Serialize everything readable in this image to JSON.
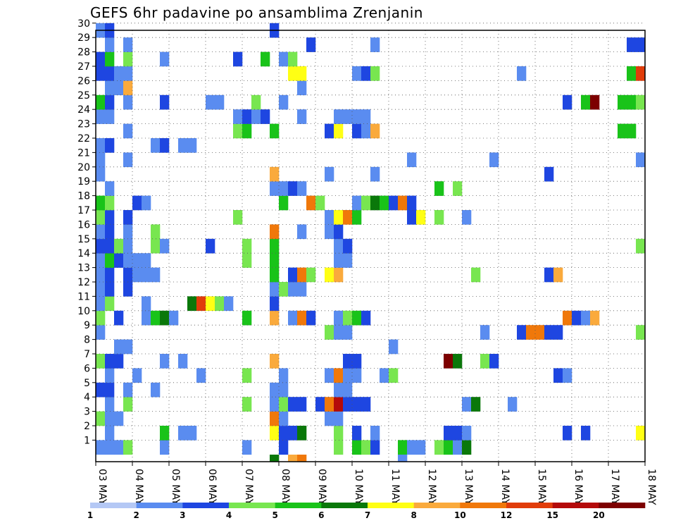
{
  "chart_data": {
    "type": "heatmap",
    "title": "GEFS 6hr padavine po ansamblima Zrenjanin",
    "xlabel": "",
    "ylabel": "",
    "y_members": [
      1,
      2,
      3,
      4,
      5,
      6,
      7,
      8,
      9,
      10,
      11,
      12,
      13,
      14,
      15,
      16,
      17,
      18,
      19,
      20,
      21,
      22,
      23,
      24,
      25,
      26,
      27,
      28,
      29,
      30
    ],
    "x_ticks": [
      {
        "label": "03 MAY",
        "step": 0
      },
      {
        "label": "04 MAY",
        "step": 4
      },
      {
        "label": "05 MAY",
        "step": 8
      },
      {
        "label": "06 MAY",
        "step": 12
      },
      {
        "label": "07 MAY",
        "step": 16
      },
      {
        "label": "08 MAY",
        "step": 20
      },
      {
        "label": "09 MAY",
        "step": 24
      },
      {
        "label": "10 MAY",
        "step": 28
      },
      {
        "label": "11 MAY",
        "step": 32
      },
      {
        "label": "12 MAY",
        "step": 36
      },
      {
        "label": "13 MAY",
        "step": 40
      },
      {
        "label": "14 MAY",
        "step": 44
      },
      {
        "label": "15 MAY",
        "step": 48
      },
      {
        "label": "16 MAY",
        "step": 52
      },
      {
        "label": "17 MAY",
        "step": 56
      },
      {
        "label": "18 MAY",
        "step": 60
      }
    ],
    "x_range": [
      "03 MAY",
      "18 MAY"
    ],
    "interval": "6hr",
    "grid": true,
    "legend": {
      "placement": "bottom",
      "labels": [
        "1",
        "2",
        "3",
        "4",
        "5",
        "6",
        "7",
        "8",
        "10",
        "12",
        "15",
        "20"
      ],
      "colors": [
        "#b4c8f5",
        "#5a8cf0",
        "#1e46e1",
        "#78e650",
        "#19c319",
        "#0a780a",
        "#ffff14",
        "#faaa3c",
        "#f0780a",
        "#e13c0a",
        "#b40a0a",
        "#7d0000"
      ]
    },
    "cells": [
      [
        1,
        0,
        1
      ],
      [
        1,
        1,
        1
      ],
      [
        1,
        2,
        1
      ],
      [
        1,
        3,
        3
      ],
      [
        1,
        7,
        1
      ],
      [
        1,
        16,
        1
      ],
      [
        1,
        20,
        2
      ],
      [
        1,
        26,
        3
      ],
      [
        1,
        28,
        4
      ],
      [
        1,
        29,
        3
      ],
      [
        1,
        30,
        2
      ],
      [
        1,
        33,
        4
      ],
      [
        1,
        34,
        1
      ],
      [
        1,
        35,
        1
      ],
      [
        1,
        37,
        3
      ],
      [
        1,
        38,
        4
      ],
      [
        1,
        39,
        1
      ],
      [
        1,
        40,
        5
      ],
      [
        2,
        1,
        1
      ],
      [
        2,
        7,
        4
      ],
      [
        2,
        9,
        1
      ],
      [
        2,
        10,
        1
      ],
      [
        2,
        19,
        6
      ],
      [
        2,
        20,
        2
      ],
      [
        2,
        21,
        2
      ],
      [
        2,
        22,
        5
      ],
      [
        2,
        26,
        3
      ],
      [
        2,
        28,
        2
      ],
      [
        2,
        30,
        1
      ],
      [
        2,
        38,
        2
      ],
      [
        2,
        39,
        2
      ],
      [
        2,
        40,
        1
      ],
      [
        2,
        51,
        2
      ],
      [
        2,
        53,
        2
      ],
      [
        2,
        59,
        6
      ],
      [
        3,
        0,
        3
      ],
      [
        3,
        1,
        1
      ],
      [
        3,
        2,
        1
      ],
      [
        3,
        19,
        8
      ],
      [
        3,
        20,
        1
      ],
      [
        3,
        25,
        1
      ],
      [
        3,
        26,
        1
      ],
      [
        4,
        1,
        1
      ],
      [
        4,
        3,
        3
      ],
      [
        4,
        16,
        3
      ],
      [
        4,
        19,
        1
      ],
      [
        4,
        20,
        3
      ],
      [
        4,
        21,
        2
      ],
      [
        4,
        22,
        2
      ],
      [
        4,
        24,
        2
      ],
      [
        4,
        25,
        8
      ],
      [
        4,
        26,
        10
      ],
      [
        4,
        27,
        2
      ],
      [
        4,
        28,
        2
      ],
      [
        4,
        29,
        2
      ],
      [
        4,
        40,
        1
      ],
      [
        4,
        41,
        5
      ],
      [
        4,
        45,
        1
      ],
      [
        5,
        0,
        2
      ],
      [
        5,
        1,
        2
      ],
      [
        5,
        3,
        1
      ],
      [
        5,
        6,
        1
      ],
      [
        5,
        19,
        1
      ],
      [
        5,
        20,
        1
      ],
      [
        5,
        26,
        1
      ],
      [
        5,
        27,
        1
      ],
      [
        6,
        1,
        1
      ],
      [
        6,
        4,
        1
      ],
      [
        6,
        11,
        1
      ],
      [
        6,
        16,
        3
      ],
      [
        6,
        20,
        1
      ],
      [
        6,
        25,
        1
      ],
      [
        6,
        26,
        8
      ],
      [
        6,
        27,
        1
      ],
      [
        6,
        28,
        1
      ],
      [
        6,
        31,
        1
      ],
      [
        6,
        32,
        3
      ],
      [
        6,
        50,
        2
      ],
      [
        6,
        51,
        1
      ],
      [
        7,
        0,
        3
      ],
      [
        7,
        1,
        2
      ],
      [
        7,
        2,
        2
      ],
      [
        7,
        7,
        1
      ],
      [
        7,
        9,
        1
      ],
      [
        7,
        19,
        7
      ],
      [
        7,
        27,
        2
      ],
      [
        7,
        28,
        2
      ],
      [
        7,
        38,
        11
      ],
      [
        7,
        39,
        5
      ],
      [
        7,
        42,
        3
      ],
      [
        7,
        43,
        2
      ],
      [
        8,
        2,
        1
      ],
      [
        8,
        3,
        1
      ],
      [
        8,
        32,
        1
      ],
      [
        9,
        0,
        1
      ],
      [
        9,
        25,
        3
      ],
      [
        9,
        26,
        1
      ],
      [
        9,
        27,
        1
      ],
      [
        9,
        42,
        1
      ],
      [
        9,
        46,
        2
      ],
      [
        9,
        47,
        8
      ],
      [
        9,
        48,
        8
      ],
      [
        9,
        49,
        2
      ],
      [
        9,
        50,
        2
      ],
      [
        9,
        59,
        3
      ],
      [
        10,
        0,
        3
      ],
      [
        10,
        2,
        2
      ],
      [
        10,
        5,
        1
      ],
      [
        10,
        6,
        4
      ],
      [
        10,
        7,
        5
      ],
      [
        10,
        8,
        1
      ],
      [
        10,
        16,
        4
      ],
      [
        10,
        19,
        7
      ],
      [
        10,
        21,
        1
      ],
      [
        10,
        22,
        8
      ],
      [
        10,
        23,
        2
      ],
      [
        10,
        26,
        1
      ],
      [
        10,
        27,
        3
      ],
      [
        10,
        28,
        4
      ],
      [
        10,
        29,
        2
      ],
      [
        10,
        51,
        8
      ],
      [
        10,
        52,
        2
      ],
      [
        10,
        53,
        1
      ],
      [
        10,
        54,
        7
      ],
      [
        11,
        0,
        1
      ],
      [
        11,
        1,
        3
      ],
      [
        11,
        5,
        1
      ],
      [
        11,
        10,
        5
      ],
      [
        11,
        11,
        9
      ],
      [
        11,
        12,
        6
      ],
      [
        11,
        13,
        3
      ],
      [
        11,
        14,
        1
      ],
      [
        11,
        19,
        2
      ],
      [
        12,
        0,
        1
      ],
      [
        12,
        1,
        2
      ],
      [
        12,
        3,
        2
      ],
      [
        12,
        19,
        1
      ],
      [
        12,
        20,
        3
      ],
      [
        12,
        21,
        1
      ],
      [
        12,
        22,
        1
      ],
      [
        13,
        0,
        1
      ],
      [
        13,
        1,
        2
      ],
      [
        13,
        3,
        2
      ],
      [
        13,
        4,
        1
      ],
      [
        13,
        5,
        1
      ],
      [
        13,
        6,
        1
      ],
      [
        13,
        19,
        4
      ],
      [
        13,
        21,
        2
      ],
      [
        13,
        22,
        8
      ],
      [
        13,
        23,
        3
      ],
      [
        13,
        25,
        6
      ],
      [
        13,
        26,
        7
      ],
      [
        13,
        41,
        3
      ],
      [
        13,
        49,
        2
      ],
      [
        13,
        50,
        7
      ],
      [
        14,
        0,
        1
      ],
      [
        14,
        1,
        4
      ],
      [
        14,
        2,
        2
      ],
      [
        14,
        3,
        1
      ],
      [
        14,
        4,
        1
      ],
      [
        14,
        5,
        1
      ],
      [
        14,
        16,
        3
      ],
      [
        14,
        19,
        4
      ],
      [
        14,
        26,
        1
      ],
      [
        14,
        27,
        1
      ],
      [
        15,
        0,
        2
      ],
      [
        15,
        1,
        2
      ],
      [
        15,
        2,
        3
      ],
      [
        15,
        3,
        1
      ],
      [
        15,
        6,
        3
      ],
      [
        15,
        7,
        1
      ],
      [
        15,
        12,
        2
      ],
      [
        15,
        16,
        3
      ],
      [
        15,
        19,
        4
      ],
      [
        15,
        26,
        1
      ],
      [
        15,
        27,
        2
      ],
      [
        15,
        59,
        3
      ],
      [
        16,
        0,
        1
      ],
      [
        16,
        1,
        2
      ],
      [
        16,
        3,
        1
      ],
      [
        16,
        6,
        3
      ],
      [
        16,
        19,
        8
      ],
      [
        16,
        22,
        1
      ],
      [
        16,
        25,
        1
      ],
      [
        16,
        26,
        2
      ],
      [
        17,
        0,
        3
      ],
      [
        17,
        1,
        2
      ],
      [
        17,
        3,
        2
      ],
      [
        17,
        15,
        3
      ],
      [
        17,
        25,
        1
      ],
      [
        17,
        26,
        6
      ],
      [
        17,
        27,
        8
      ],
      [
        17,
        28,
        4
      ],
      [
        17,
        34,
        2
      ],
      [
        17,
        35,
        6
      ],
      [
        17,
        37,
        3
      ],
      [
        17,
        40,
        1
      ],
      [
        18,
        0,
        4
      ],
      [
        18,
        1,
        3
      ],
      [
        18,
        4,
        2
      ],
      [
        18,
        5,
        1
      ],
      [
        18,
        20,
        4
      ],
      [
        18,
        23,
        8
      ],
      [
        18,
        24,
        3
      ],
      [
        18,
        28,
        1
      ],
      [
        18,
        29,
        3
      ],
      [
        18,
        30,
        5
      ],
      [
        18,
        31,
        4
      ],
      [
        18,
        32,
        2
      ],
      [
        18,
        33,
        8
      ],
      [
        18,
        34,
        2
      ],
      [
        19,
        1,
        1
      ],
      [
        19,
        19,
        1
      ],
      [
        19,
        20,
        1
      ],
      [
        19,
        21,
        2
      ],
      [
        19,
        22,
        1
      ],
      [
        19,
        37,
        4
      ],
      [
        19,
        39,
        3
      ],
      [
        20,
        0,
        1
      ],
      [
        20,
        19,
        7
      ],
      [
        20,
        25,
        1
      ],
      [
        20,
        30,
        1
      ],
      [
        20,
        49,
        2
      ],
      [
        21,
        0,
        1
      ],
      [
        21,
        3,
        1
      ],
      [
        21,
        34,
        1
      ],
      [
        21,
        43,
        1
      ],
      [
        21,
        59,
        1
      ],
      [
        22,
        0,
        1
      ],
      [
        22,
        1,
        2
      ],
      [
        22,
        6,
        1
      ],
      [
        22,
        7,
        2
      ],
      [
        22,
        9,
        1
      ],
      [
        22,
        10,
        1
      ],
      [
        23,
        3,
        1
      ],
      [
        23,
        15,
        3
      ],
      [
        23,
        16,
        4
      ],
      [
        23,
        19,
        4
      ],
      [
        23,
        25,
        2
      ],
      [
        23,
        26,
        6
      ],
      [
        23,
        28,
        2
      ],
      [
        23,
        29,
        1
      ],
      [
        23,
        30,
        7
      ],
      [
        23,
        57,
        4
      ],
      [
        23,
        58,
        4
      ],
      [
        24,
        0,
        1
      ],
      [
        24,
        1,
        1
      ],
      [
        24,
        15,
        1
      ],
      [
        24,
        16,
        2
      ],
      [
        24,
        17,
        1
      ],
      [
        24,
        18,
        2
      ],
      [
        24,
        22,
        1
      ],
      [
        24,
        26,
        1
      ],
      [
        24,
        27,
        1
      ],
      [
        24,
        28,
        1
      ],
      [
        24,
        29,
        1
      ],
      [
        25,
        0,
        4
      ],
      [
        25,
        1,
        2
      ],
      [
        25,
        3,
        1
      ],
      [
        25,
        7,
        2
      ],
      [
        25,
        12,
        1
      ],
      [
        25,
        13,
        1
      ],
      [
        25,
        17,
        3
      ],
      [
        25,
        20,
        1
      ],
      [
        25,
        51,
        2
      ],
      [
        25,
        53,
        4
      ],
      [
        25,
        54,
        11
      ],
      [
        25,
        57,
        4
      ],
      [
        25,
        58,
        4
      ],
      [
        25,
        59,
        3
      ],
      [
        26,
        1,
        1
      ],
      [
        26,
        2,
        1
      ],
      [
        26,
        3,
        7
      ],
      [
        26,
        22,
        1
      ],
      [
        27,
        0,
        2
      ],
      [
        27,
        1,
        2
      ],
      [
        27,
        2,
        1
      ],
      [
        27,
        3,
        1
      ],
      [
        27,
        21,
        6
      ],
      [
        27,
        22,
        6
      ],
      [
        27,
        28,
        1
      ],
      [
        27,
        29,
        2
      ],
      [
        27,
        30,
        3
      ],
      [
        27,
        46,
        1
      ],
      [
        27,
        58,
        4
      ],
      [
        27,
        59,
        9
      ],
      [
        28,
        0,
        2
      ],
      [
        28,
        1,
        4
      ],
      [
        28,
        3,
        3
      ],
      [
        28,
        7,
        1
      ],
      [
        28,
        15,
        2
      ],
      [
        28,
        18,
        4
      ],
      [
        28,
        20,
        1
      ],
      [
        28,
        21,
        3
      ],
      [
        29,
        1,
        1
      ],
      [
        29,
        3,
        1
      ],
      [
        29,
        23,
        2
      ],
      [
        29,
        30,
        1
      ],
      [
        29,
        58,
        2
      ],
      [
        29,
        59,
        2
      ],
      [
        30,
        0,
        1
      ],
      [
        30,
        1,
        2
      ],
      [
        30,
        19,
        2
      ],
      [
        0,
        19,
        5
      ],
      [
        0,
        21,
        7
      ],
      [
        0,
        22,
        8
      ],
      [
        0,
        33,
        1
      ]
    ]
  }
}
